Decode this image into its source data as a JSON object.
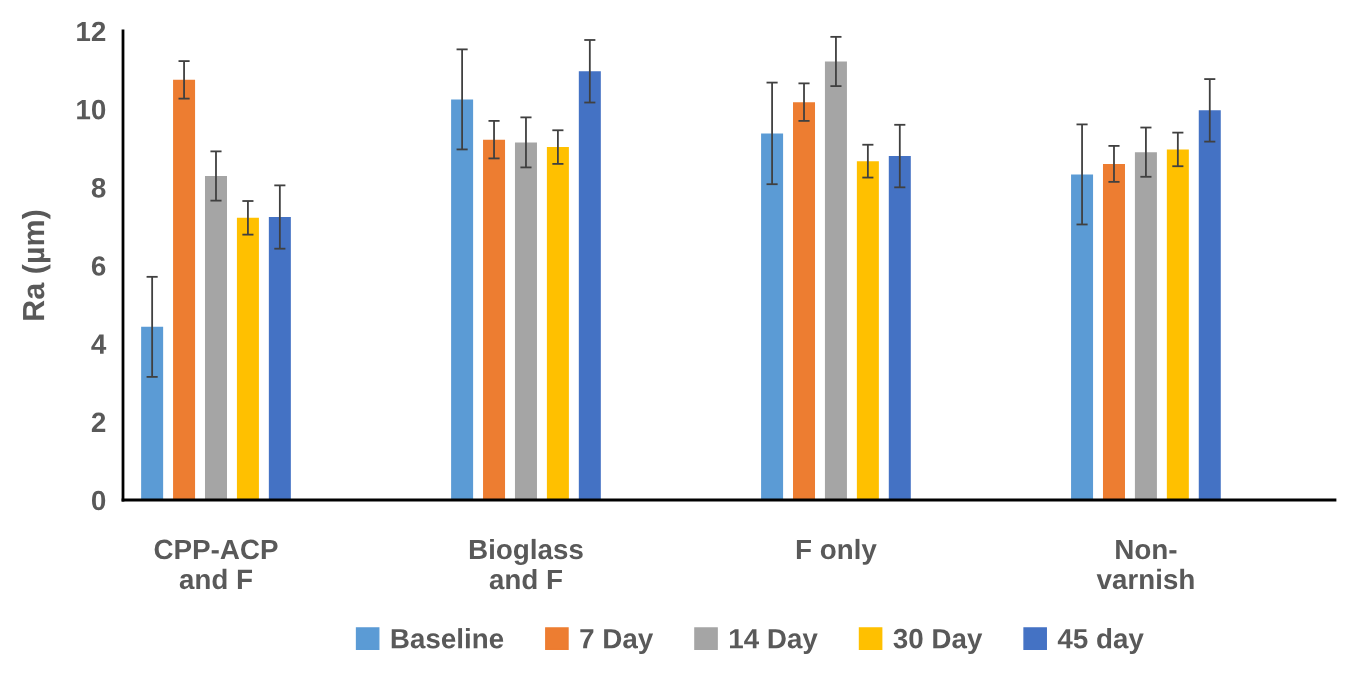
{
  "chart_data": {
    "type": "bar",
    "ylabel": "Ra (µm)",
    "categories": [
      "CPP-ACP\nand F",
      "Bioglass\nand F",
      "F only",
      "Non-\nvarnish"
    ],
    "series": [
      {
        "name": "Baseline",
        "color": "#5b9bd5",
        "values": [
          4.43,
          10.25,
          9.38,
          8.33
        ],
        "errors": [
          1.28,
          1.28,
          1.3,
          1.28
        ]
      },
      {
        "name": "7 Day",
        "color": "#ed7d31",
        "values": [
          10.75,
          9.22,
          10.18,
          8.6
        ],
        "errors": [
          0.48,
          0.48,
          0.48,
          0.46
        ]
      },
      {
        "name": "14 Day",
        "color": "#a5a5a5",
        "values": [
          8.29,
          9.15,
          11.22,
          8.9
        ],
        "errors": [
          0.63,
          0.64,
          0.63,
          0.63
        ]
      },
      {
        "name": "30 Day",
        "color": "#ffc000",
        "values": [
          7.22,
          9.03,
          8.67,
          8.97
        ],
        "errors": [
          0.43,
          0.43,
          0.42,
          0.43
        ]
      },
      {
        "name": "45 day",
        "color": "#4472c4",
        "values": [
          7.24,
          10.97,
          8.8,
          9.97
        ],
        "errors": [
          0.81,
          0.8,
          0.8,
          0.8
        ]
      }
    ],
    "ylim": [
      0,
      12
    ],
    "yticks": [
      0,
      2,
      4,
      6,
      8,
      10,
      12
    ],
    "grid": false,
    "legend": "bottom"
  }
}
